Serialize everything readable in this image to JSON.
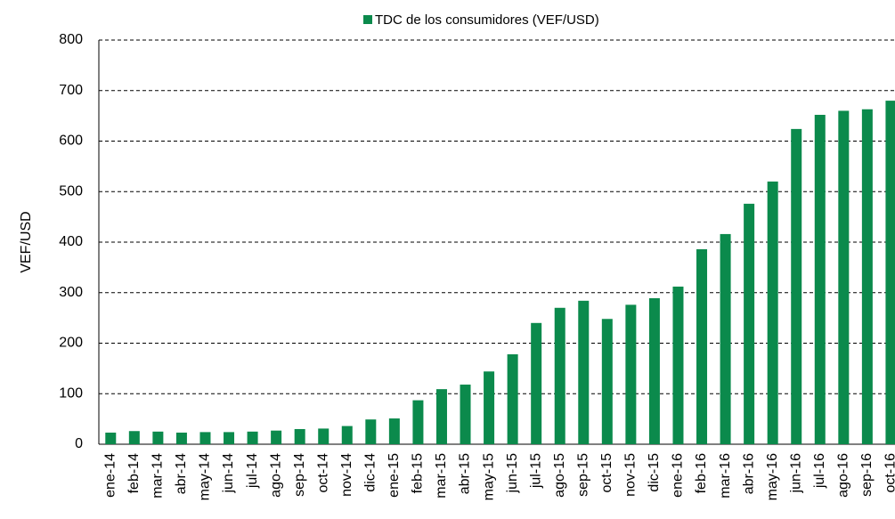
{
  "chart_data": {
    "type": "bar",
    "y_label": "VEF/USD",
    "legend_position": "top",
    "grid": true,
    "categories": [
      "ene-14",
      "feb-14",
      "mar-14",
      "abr-14",
      "may-14",
      "jun-14",
      "jul-14",
      "ago-14",
      "sep-14",
      "oct-14",
      "nov-14",
      "dic-14",
      "ene-15",
      "feb-15",
      "mar-15",
      "abr-15",
      "may-15",
      "jun-15",
      "jul-15",
      "ago-15",
      "sep-15",
      "oct-15",
      "nov-15",
      "dic-15",
      "ene-16",
      "feb-16",
      "mar-16",
      "abr-16",
      "may-16",
      "jun-16",
      "jul-16",
      "ago-16",
      "sep-16",
      "oct-16"
    ],
    "series": [
      {
        "name": "TDC de los consumidores (VEF/USD)",
        "color": "#0b8a4c",
        "values": [
          23,
          26,
          25,
          23,
          24,
          24,
          25,
          27,
          30,
          31,
          36,
          49,
          51,
          87,
          109,
          118,
          144,
          178,
          240,
          270,
          284,
          248,
          276,
          289,
          312,
          386,
          416,
          476,
          520,
          624,
          652,
          660,
          663,
          680
        ]
      }
    ],
    "ylim": [
      0,
      800
    ],
    "yticks": [
      0,
      100,
      200,
      300,
      400,
      500,
      600,
      700,
      800
    ]
  }
}
